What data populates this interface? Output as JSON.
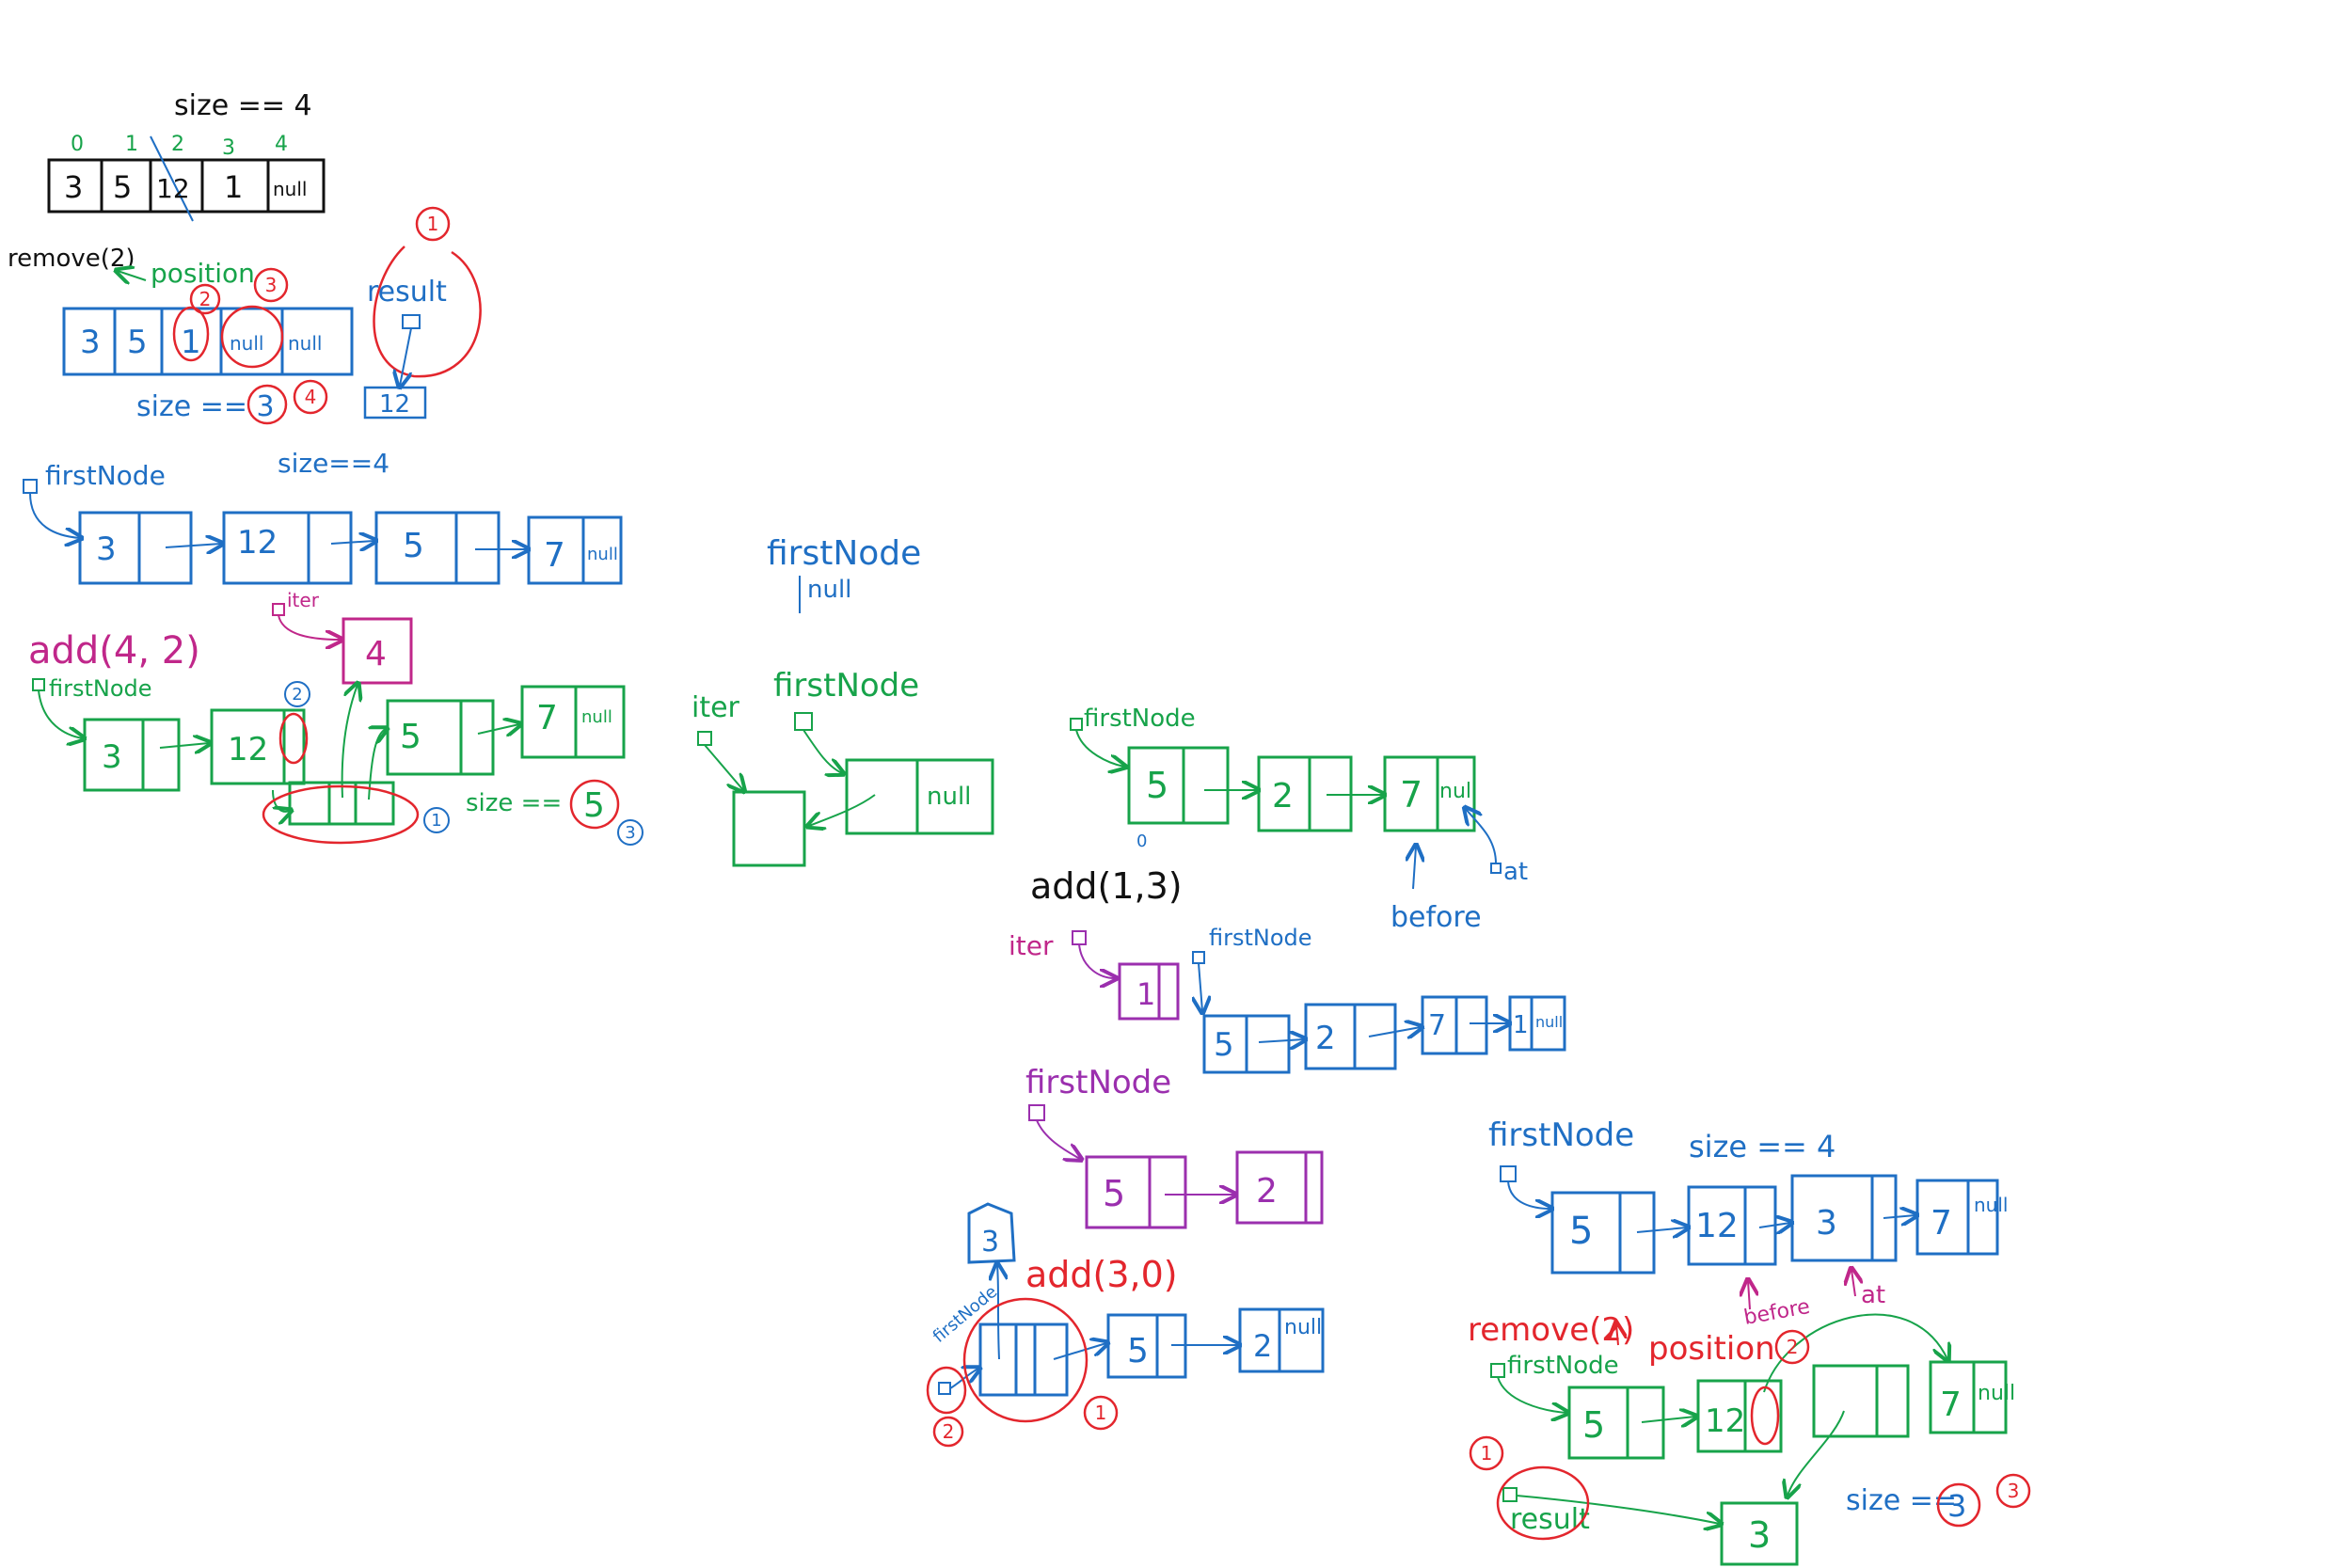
{
  "colors": {
    "black": "#111111",
    "blue": "#1f6fc4",
    "green": "#17a34a",
    "red": "#e3262d",
    "magenta": "#c0278a",
    "purple": "#9b2fae"
  },
  "array_section": {
    "size_label": "size == 4",
    "indices": [
      "0",
      "1",
      "2",
      "3",
      "4"
    ],
    "cells": [
      "3",
      "5",
      "12",
      "1",
      "null"
    ],
    "remove_call": "remove(2)",
    "position_label": "position",
    "after_cells": [
      "3",
      "5",
      "1",
      "null",
      "null"
    ],
    "after_size": "size == 3",
    "result_label": "result",
    "result_value": "12",
    "steps": [
      "1",
      "2",
      "3",
      "4"
    ]
  },
  "list_original": {
    "first_node": "firstNode",
    "size_label": "size==4",
    "nodes": [
      "3",
      "12",
      "5",
      "7"
    ],
    "null_label": "null"
  },
  "add_4_2": {
    "call": "add(4, 2)",
    "iter_label": "iter",
    "new_value": "4",
    "first_node": "firstNode",
    "nodes": [
      "3",
      "12",
      "5",
      "7"
    ],
    "null_label": "null",
    "size_label": "size ==",
    "size_value": "5",
    "steps": [
      "1",
      "2",
      "3"
    ]
  },
  "empty_list": {
    "first_node": "firstNode",
    "null_label": "null"
  },
  "empty_add": {
    "iter_label": "iter",
    "first_node": "firstNode",
    "null_label": "null"
  },
  "add_end": {
    "first_node": "firstNode",
    "nodes": [
      "5",
      "2",
      "7"
    ],
    "null_label": "null",
    "before_label": "before",
    "at_label": "at"
  },
  "add_1_3": {
    "call": "add(1,3)",
    "overwrite": "0",
    "iter_label": "iter",
    "new_value": "1",
    "first_node": "firstNode",
    "nodes": [
      "5",
      "2",
      "7",
      "1"
    ],
    "null_label": "null"
  },
  "purple_list": {
    "first_node": "firstNode",
    "nodes": [
      "5",
      "2"
    ]
  },
  "add_3_0": {
    "call": "add(3,0)",
    "new_value": "3",
    "first_node": "firstNode",
    "nodes": [
      "5",
      "2"
    ],
    "null_label": "null",
    "steps": [
      "1",
      "2"
    ]
  },
  "list_remove": {
    "first_node": "firstNode",
    "size_label": "size == 4",
    "nodes": [
      "5",
      "12",
      "3",
      "7"
    ],
    "null_label": "null",
    "before_label": "before",
    "at_label": "at"
  },
  "remove_2": {
    "call": "remove(2)",
    "position_label": "position",
    "first_node": "firstNode",
    "nodes": [
      "5",
      "12",
      "7"
    ],
    "null_label": "null",
    "result_label": "result",
    "removed_value": "3",
    "size_label": "size ==",
    "size_value": "3",
    "steps": [
      "1",
      "2",
      "3"
    ]
  }
}
